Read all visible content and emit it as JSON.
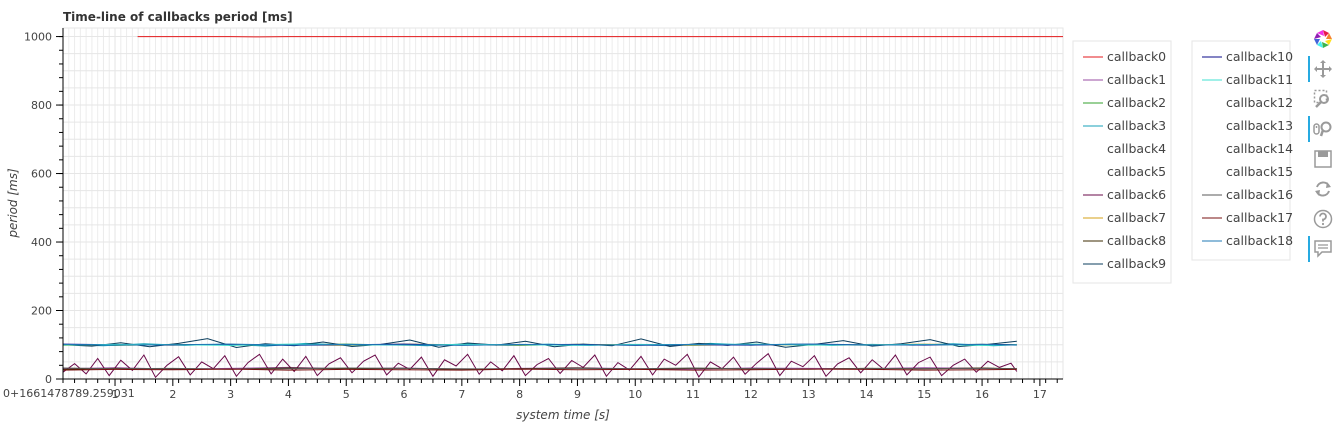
{
  "chart_data": {
    "type": "line",
    "title": "Time-line of callbacks period [ms]",
    "xlabel": "system time [s]",
    "ylabel": "period [ms]",
    "x_offset_label": "0+1661478789.259031",
    "xlim": [
      0.1,
      17.4
    ],
    "ylim": [
      0,
      1025
    ],
    "x_ticks": [
      1,
      2,
      3,
      4,
      5,
      6,
      7,
      8,
      9,
      10,
      11,
      12,
      13,
      14,
      15,
      16,
      17
    ],
    "y_ticks": [
      0,
      200,
      400,
      600,
      800,
      1000
    ],
    "grid": true,
    "legend_placement": "right",
    "series": [
      {
        "name": "callback0",
        "color": "#e31a1c",
        "x": [
          1.39,
          2.0,
          3.0,
          3.5,
          4.0,
          5.0,
          6.0,
          7.0,
          8.0,
          9.0,
          10.0,
          11.0,
          12.0,
          13.0,
          14.0,
          15.0,
          16.0,
          17.4
        ],
        "values": [
          1000,
          1000,
          1000,
          999,
          1000,
          1000,
          1000,
          1000,
          1000,
          1000,
          1000,
          1000,
          1000,
          1000,
          1000,
          1000,
          1000,
          1000
        ]
      },
      {
        "name": "callback1",
        "color": "#984ea3",
        "x": [
          0.1,
          1.0,
          2.0,
          3.0,
          4.0,
          5.0,
          6.0,
          7.0,
          8.0,
          9.0,
          10.0,
          11.0,
          12.0,
          13.0,
          14.0,
          15.0,
          16.0,
          16.6
        ],
        "values": [
          30,
          33,
          29,
          31,
          34,
          30,
          32,
          28,
          31,
          33,
          30,
          29,
          32,
          31,
          30,
          33,
          31,
          30
        ]
      },
      {
        "name": "callback2",
        "color": "#33a02c",
        "x": [
          0.1,
          1.0,
          2.0,
          3.0,
          4.0,
          5.0,
          6.0,
          7.0,
          8.0,
          9.0,
          10.0,
          11.0,
          12.0,
          13.0,
          14.0,
          15.0,
          16.0,
          16.6
        ],
        "values": [
          100,
          98,
          101,
          99,
          100,
          102,
          99,
          100,
          98,
          101,
          100,
          99,
          101,
          100,
          99,
          100,
          101,
          100
        ]
      },
      {
        "name": "callback3",
        "color": "#17a2b8",
        "x": [
          0.1,
          0.8,
          1.5,
          2.2,
          2.9,
          3.6,
          4.3,
          5.0,
          5.7,
          6.4,
          7.1,
          7.8,
          8.5,
          9.2,
          9.9,
          10.6,
          11.3,
          12.0,
          12.7,
          13.4,
          14.1,
          14.8,
          15.5,
          16.2,
          16.6
        ],
        "values": [
          100,
          97,
          103,
          98,
          102,
          96,
          104,
          99,
          101,
          97,
          103,
          99,
          102,
          98,
          101,
          97,
          104,
          99,
          102,
          98,
          101,
          99,
          103,
          97,
          100
        ]
      },
      {
        "name": "callback4",
        "color": "#ffffff",
        "x": [],
        "values": []
      },
      {
        "name": "callback5",
        "color": "#ffffff",
        "x": [],
        "values": []
      },
      {
        "name": "callback6",
        "color": "#6a0848",
        "x": [
          0.1,
          0.3,
          0.5,
          0.7,
          0.9,
          1.1,
          1.3,
          1.5,
          1.7,
          1.9,
          2.1,
          2.3,
          2.5,
          2.7,
          2.9,
          3.1,
          3.3,
          3.5,
          3.7,
          3.9,
          4.1,
          4.3,
          4.5,
          4.7,
          4.9,
          5.1,
          5.3,
          5.5,
          5.7,
          5.9,
          6.1,
          6.3,
          6.5,
          6.7,
          6.9,
          7.1,
          7.3,
          7.5,
          7.7,
          7.9,
          8.1,
          8.3,
          8.5,
          8.7,
          8.9,
          9.1,
          9.3,
          9.5,
          9.7,
          9.9,
          10.1,
          10.3,
          10.5,
          10.7,
          10.9,
          11.1,
          11.3,
          11.5,
          11.7,
          11.9,
          12.1,
          12.3,
          12.5,
          12.7,
          12.9,
          13.1,
          13.3,
          13.5,
          13.7,
          13.9,
          14.1,
          14.3,
          14.5,
          14.7,
          14.9,
          15.1,
          15.3,
          15.5,
          15.7,
          15.9,
          16.1,
          16.3,
          16.5,
          16.6
        ],
        "values": [
          20,
          45,
          15,
          60,
          10,
          55,
          25,
          70,
          5,
          40,
          65,
          12,
          50,
          30,
          68,
          8,
          48,
          72,
          15,
          58,
          22,
          66,
          10,
          44,
          62,
          18,
          52,
          70,
          12,
          46,
          28,
          64,
          8,
          56,
          38,
          72,
          14,
          50,
          24,
          68,
          10,
          42,
          60,
          16,
          54,
          34,
          70,
          8,
          48,
          26,
          66,
          12,
          58,
          40,
          72,
          6,
          50,
          30,
          64,
          14,
          46,
          74,
          10,
          52,
          36,
          68,
          8,
          44,
          62,
          18,
          56,
          28,
          70,
          12,
          48,
          64,
          10,
          40,
          58,
          20,
          52,
          34,
          46,
          22
        ]
      },
      {
        "name": "callback7",
        "color": "#d4a017",
        "x": [
          0.1,
          1.0,
          2.0,
          3.0,
          4.0,
          5.0,
          6.0,
          7.0,
          8.0,
          9.0,
          10.0,
          11.0,
          12.0,
          13.0,
          14.0,
          15.0,
          16.0,
          16.6
        ],
        "values": [
          98,
          100,
          99,
          101,
          100,
          98,
          102,
          100,
          99,
          101,
          100,
          98,
          101,
          99,
          100,
          102,
          99,
          100
        ]
      },
      {
        "name": "callback8",
        "color": "#3d2b00",
        "x": [
          0.1,
          1.0,
          2.0,
          3.0,
          4.0,
          5.0,
          6.0,
          7.0,
          8.0,
          9.0,
          10.0,
          11.0,
          12.0,
          13.0,
          14.0,
          15.0,
          16.0,
          16.6
        ],
        "values": [
          28,
          31,
          30,
          29,
          32,
          30,
          31,
          29,
          30,
          32,
          29,
          31,
          30,
          29,
          31,
          30,
          32,
          30
        ]
      },
      {
        "name": "callback9",
        "color": "#0b3d5c",
        "x": [
          0.1,
          0.6,
          1.1,
          1.6,
          2.1,
          2.6,
          3.1,
          3.6,
          4.1,
          4.6,
          5.1,
          5.6,
          6.1,
          6.6,
          7.1,
          7.6,
          8.1,
          8.6,
          9.1,
          9.6,
          10.1,
          10.6,
          11.1,
          11.6,
          12.1,
          12.6,
          13.1,
          13.6,
          14.1,
          14.6,
          15.1,
          15.6,
          16.1,
          16.6
        ],
        "values": [
          100,
          96,
          106,
          94,
          104,
          118,
          92,
          103,
          97,
          108,
          95,
          101,
          114,
          93,
          105,
          99,
          110,
          94,
          102,
          97,
          117,
          95,
          104,
          98,
          108,
          93,
          101,
          112,
          96,
          103,
          115,
          95,
          101,
          110
        ]
      },
      {
        "name": "callback10",
        "color": "#08088a",
        "x": [
          0.1,
          1.0,
          2.0,
          3.0,
          4.0,
          5.0,
          6.0,
          7.0,
          8.0,
          9.0,
          10.0,
          11.0,
          12.0,
          13.0,
          14.0,
          15.0,
          16.0,
          16.6
        ],
        "values": [
          102,
          100,
          99,
          101,
          98,
          100,
          102,
          99,
          100,
          101,
          98,
          100,
          99,
          102,
          100,
          99,
          101,
          100
        ]
      },
      {
        "name": "callback11",
        "color": "#40e0d0",
        "x": [
          0.1,
          1.0,
          2.0,
          3.0,
          4.0,
          5.0,
          6.0,
          7.0,
          8.0,
          9.0,
          10.0,
          11.0,
          12.0,
          13.0,
          14.0,
          15.0,
          16.0,
          16.6
        ],
        "values": [
          99,
          101,
          100,
          98,
          102,
          100,
          99,
          101,
          100,
          98,
          101,
          100,
          102,
          99,
          100,
          101,
          98,
          100
        ]
      },
      {
        "name": "callback12",
        "color": "#ffffff",
        "x": [],
        "values": []
      },
      {
        "name": "callback13",
        "color": "#ffffff",
        "x": [],
        "values": []
      },
      {
        "name": "callback14",
        "color": "#ffffff",
        "x": [],
        "values": []
      },
      {
        "name": "callback15",
        "color": "#ffffff",
        "x": [],
        "values": []
      },
      {
        "name": "callback16",
        "color": "#5a5a5a",
        "x": [
          0.1,
          1.0,
          2.0,
          3.0,
          4.0,
          5.0,
          6.0,
          7.0,
          8.0,
          9.0,
          10.0,
          11.0,
          12.0,
          13.0,
          14.0,
          15.0,
          16.0,
          16.6
        ],
        "values": [
          32,
          30,
          31,
          29,
          30,
          32,
          31,
          30,
          29,
          31,
          30,
          32,
          30,
          29,
          31,
          30,
          31,
          30
        ]
      },
      {
        "name": "callback17",
        "color": "#7a1010",
        "x": [
          0.1,
          1.0,
          2.0,
          3.0,
          4.0,
          5.0,
          6.0,
          7.0,
          8.0,
          9.0,
          10.0,
          11.0,
          12.0,
          13.0,
          14.0,
          15.0,
          16.0,
          16.6
        ],
        "values": [
          26,
          28,
          27,
          29,
          26,
          28,
          27,
          26,
          29,
          27,
          28,
          26,
          27,
          29,
          28,
          26,
          27,
          28
        ]
      },
      {
        "name": "callback18",
        "color": "#1f78b4",
        "x": [
          0.1,
          1.0,
          2.0,
          3.0,
          4.0,
          5.0,
          6.0,
          7.0,
          8.0,
          9.0,
          10.0,
          11.0,
          12.0,
          13.0,
          14.0,
          15.0,
          16.0,
          16.6
        ],
        "values": [
          101,
          99,
          100,
          102,
          99,
          101,
          100,
          98,
          101,
          100,
          99,
          101,
          100,
          102,
          99,
          100,
          101,
          99
        ]
      }
    ]
  },
  "toolbar": {
    "tools": [
      {
        "icon": "bokeh-logo-icon",
        "active": false
      },
      {
        "icon": "pan-icon",
        "active": true
      },
      {
        "icon": "box-zoom-icon",
        "active": false
      },
      {
        "icon": "wheel-zoom-icon",
        "active": true
      },
      {
        "icon": "save-icon",
        "active": false
      },
      {
        "icon": "reset-icon",
        "active": false
      },
      {
        "icon": "help-icon",
        "active": false
      },
      {
        "icon": "hover-icon",
        "active": true
      }
    ]
  }
}
